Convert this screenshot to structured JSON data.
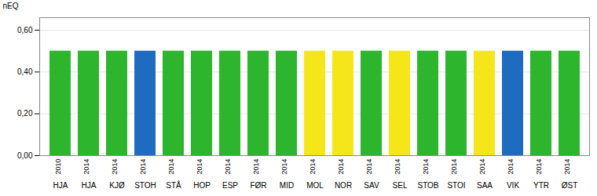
{
  "chart_data": {
    "type": "bar",
    "categories": [
      "HJA",
      "HJA",
      "KJØ",
      "STOH",
      "STÅ",
      "HOP",
      "ESP",
      "FØR",
      "MID",
      "MOL",
      "NOR",
      "SAV",
      "SEL",
      "STOB",
      "STOI",
      "SAA",
      "VIK",
      "YTR",
      "ØST"
    ],
    "years": [
      "2010",
      "2014",
      "2014",
      "2014",
      "2014",
      "2014",
      "2014",
      "2014",
      "2014",
      "2014",
      "2014",
      "2014",
      "2014",
      "2014",
      "2014",
      "2014",
      "2014",
      "2014",
      "2014"
    ],
    "values": [
      0.5,
      0.5,
      0.5,
      0.5,
      0.5,
      0.5,
      0.5,
      0.5,
      0.5,
      0.5,
      0.5,
      0.5,
      0.5,
      0.5,
      0.5,
      0.5,
      0.5,
      0.5,
      0.5
    ],
    "colors": [
      "#2db52d",
      "#2db52d",
      "#2db52d",
      "#1e6bbf",
      "#2db52d",
      "#2db52d",
      "#2db52d",
      "#2db52d",
      "#2db52d",
      "#f5e61a",
      "#f5e61a",
      "#2db52d",
      "#f5e61a",
      "#2db52d",
      "#2db52d",
      "#f5e61a",
      "#1e6bbf",
      "#2db52d",
      "#2db52d"
    ],
    "ylabel": "nEQ",
    "ylim": [
      0,
      0.66
    ],
    "yticks": [
      {
        "value": 0,
        "label": "0,00"
      },
      {
        "value": 0.2,
        "label": "0,20"
      },
      {
        "value": 0.4,
        "label": "0,40"
      },
      {
        "value": 0.6,
        "label": "0,60"
      }
    ],
    "grid": true
  }
}
